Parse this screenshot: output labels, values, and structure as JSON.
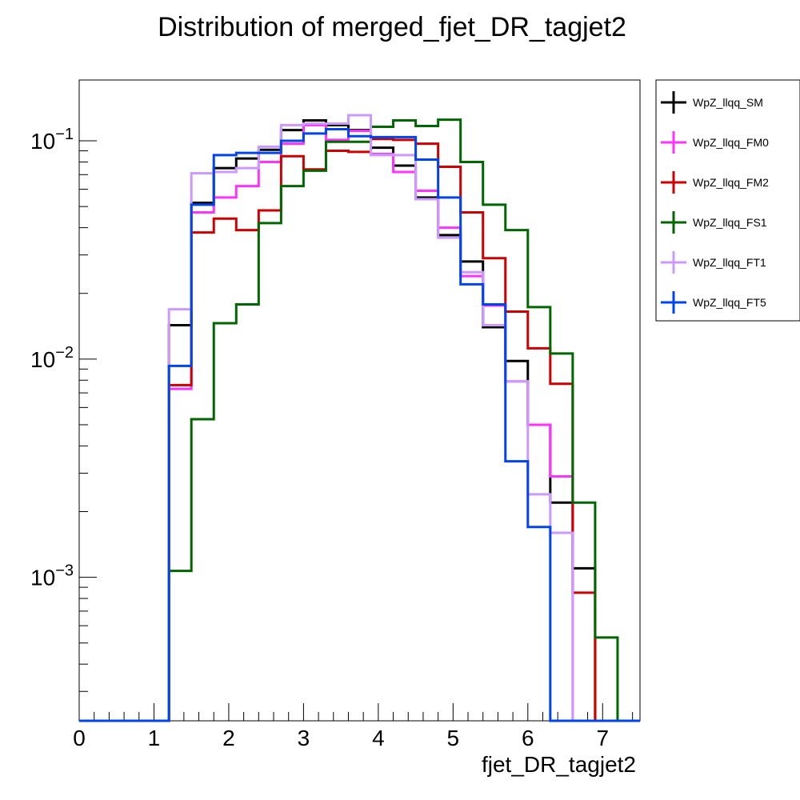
{
  "chart_data": {
    "type": "line",
    "subtype": "step-histogram",
    "title": "Distribution of merged_fjet_DR_tagjet2",
    "xlabel": "fjet_DR_tagjet2",
    "ylabel": "",
    "xlim": [
      0,
      7.5
    ],
    "ylim": [
      0.00022,
      0.19
    ],
    "yscale": "log",
    "grid": false,
    "legend_position": "right",
    "x_ticks": [
      "0",
      "1",
      "2",
      "3",
      "4",
      "5",
      "6",
      "7"
    ],
    "y_ticks": [
      {
        "value": 0.1,
        "base": "10",
        "exp": "−1"
      },
      {
        "value": 0.01,
        "base": "10",
        "exp": "−2"
      },
      {
        "value": 0.001,
        "base": "10",
        "exp": "−3"
      }
    ],
    "bin_edges": [
      0,
      0.3,
      0.6,
      0.9,
      1.2,
      1.5,
      1.8,
      2.1,
      2.4,
      2.7,
      3.0,
      3.3,
      3.6,
      3.9,
      4.2,
      4.5,
      4.8,
      5.1,
      5.4,
      5.7,
      6.0,
      6.3,
      6.6,
      6.9,
      7.2,
      7.5
    ],
    "series": [
      {
        "name": "WpZ_llqq_SM",
        "color": "#000000",
        "values": [
          0,
          0,
          0,
          0,
          0.0143,
          0.052,
          0.075,
          0.083,
          0.091,
          0.112,
          0.124,
          0.118,
          0.112,
          0.093,
          0.077,
          0.055,
          0.037,
          0.028,
          0.014,
          0.0098,
          0.005,
          0.0022,
          0.0011,
          0,
          0
        ]
      },
      {
        "name": "WpZ_llqq_FM0",
        "color": "#ff33ff",
        "values": [
          0,
          0,
          0,
          0,
          0.0073,
          0.047,
          0.055,
          0.062,
          0.08,
          0.097,
          0.118,
          0.101,
          0.111,
          0.087,
          0.072,
          0.059,
          0.04,
          0.024,
          0.0176,
          0.0079,
          0.005,
          0.0029,
          0,
          0,
          0
        ]
      },
      {
        "name": "WpZ_llqq_FM2",
        "color": "#cc0000",
        "values": [
          0,
          0,
          0,
          0,
          0.0076,
          0.038,
          0.044,
          0.039,
          0.048,
          0.085,
          0.074,
          0.09,
          0.089,
          0.102,
          0.101,
          0.097,
          0.076,
          0.047,
          0.029,
          0.0165,
          0.0112,
          0.0077,
          0.00085,
          0,
          0
        ]
      },
      {
        "name": "WpZ_llqq_FS1",
        "color": "#006600",
        "values": [
          0,
          0,
          0,
          0,
          0.00107,
          0.0053,
          0.0146,
          0.0178,
          0.042,
          0.062,
          0.073,
          0.099,
          0.099,
          0.116,
          0.124,
          0.117,
          0.125,
          0.08,
          0.051,
          0.039,
          0.0173,
          0.0106,
          0.0022,
          0.00053,
          0
        ]
      },
      {
        "name": "WpZ_llqq_FT1",
        "color": "#cc99ff",
        "values": [
          0,
          0,
          0,
          0,
          0.0169,
          0.071,
          0.072,
          0.075,
          0.094,
          0.118,
          0.12,
          0.12,
          0.131,
          0.086,
          0.086,
          0.054,
          0.036,
          0.025,
          0.0143,
          0.0079,
          0.0024,
          0.0016,
          0,
          0,
          0
        ]
      },
      {
        "name": "WpZ_llqq_FT5",
        "color": "#0044ee",
        "values": [
          0,
          0,
          0,
          0,
          0.0093,
          0.051,
          0.086,
          0.088,
          0.088,
          0.1,
          0.108,
          0.113,
          0.105,
          0.104,
          0.104,
          0.082,
          0.055,
          0.022,
          0.0178,
          0.0034,
          0.0017,
          0,
          0,
          0,
          0
        ]
      }
    ]
  }
}
